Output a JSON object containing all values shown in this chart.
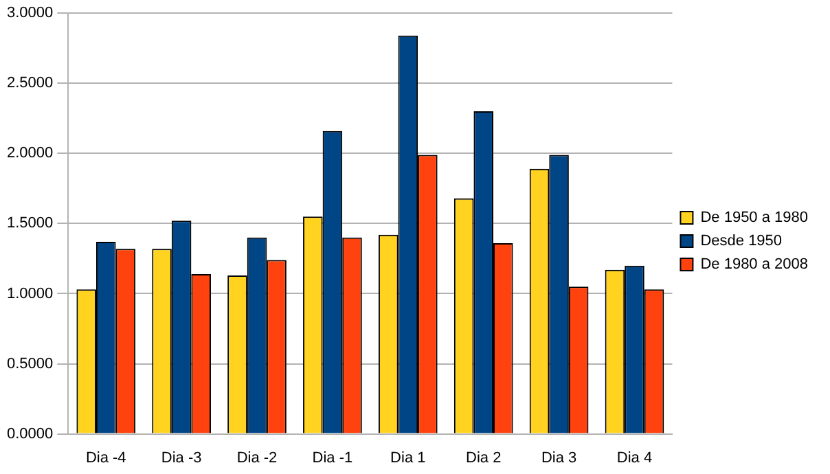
{
  "chart_data": {
    "type": "bar",
    "categories": [
      "Dia -4",
      "Dia -3",
      "Dia -2",
      "Dia -1",
      "Dia 1",
      "Dia 2",
      "Dia 3",
      "Dia 4"
    ],
    "series": [
      {
        "name": "De 1950 a 1980",
        "color": "#ffd320",
        "values": [
          1.03,
          1.32,
          1.13,
          1.55,
          1.42,
          1.68,
          1.89,
          1.17
        ]
      },
      {
        "name": "Desde 1950",
        "color": "#004586",
        "values": [
          1.37,
          1.52,
          1.4,
          2.16,
          2.84,
          2.3,
          1.99,
          1.2
        ]
      },
      {
        "name": "De 1980 a 2008",
        "color": "#ff420e",
        "values": [
          1.32,
          1.14,
          1.24,
          1.4,
          1.99,
          1.36,
          1.05,
          1.03
        ]
      }
    ],
    "ylim": [
      0,
      3
    ],
    "yticks": [
      {
        "value": 0,
        "label": "0.0000"
      },
      {
        "value": 0.5,
        "label": "0.5000"
      },
      {
        "value": 1,
        "label": "1.0000"
      },
      {
        "value": 1.5,
        "label": "1.5000"
      },
      {
        "value": 2,
        "label": "2.0000"
      },
      {
        "value": 2.5,
        "label": "2.5000"
      },
      {
        "value": 3,
        "label": "3.0000"
      }
    ],
    "grid": "y",
    "legend": "right"
  }
}
